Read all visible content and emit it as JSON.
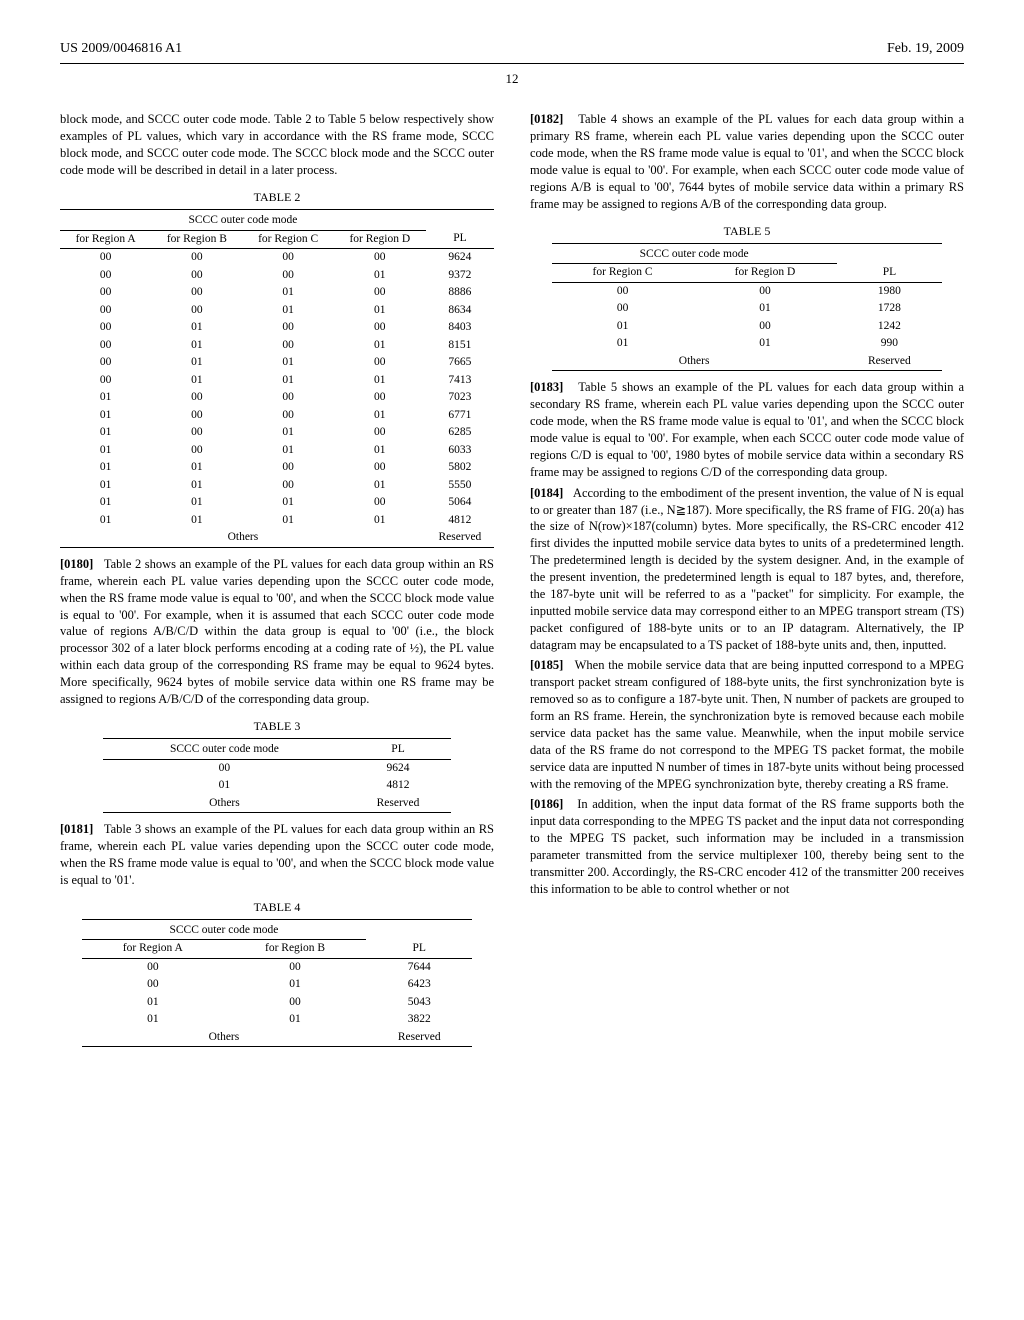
{
  "header": {
    "pub_number": "US 2009/0046816 A1",
    "pub_date": "Feb. 19, 2009",
    "page_number": "12"
  },
  "paragraphs": {
    "intro": "block mode, and SCCC outer code mode. Table 2 to Table 5 below respectively show examples of PL values, which vary in accordance with the RS frame mode, SCCC block mode, and SCCC outer code mode. The SCCC block mode and the SCCC outer code mode will be described in detail in a later process.",
    "p0180": "Table 2 shows an example of the PL values for each data group within an RS frame, wherein each PL value varies depending upon the SCCC outer code mode, when the RS frame mode value is equal to '00', and when the SCCC block mode value is equal to '00'. For example, when it is assumed that each SCCC outer code mode value of regions A/B/C/D within the data group is equal to '00' (i.e., the block processor 302 of a later block performs encoding at a coding rate of ½), the PL value within each data group of the corresponding RS frame may be equal to 9624 bytes. More specifically, 9624 bytes of mobile service data within one RS frame may be assigned to regions A/B/C/D of the corresponding data group.",
    "p0181": "Table 3 shows an example of the PL values for each data group within an RS frame, wherein each PL value varies depending upon the SCCC outer code mode, when the RS frame mode value is equal to '00', and when the SCCC block mode value is equal to '01'.",
    "p0182": "Table 4 shows an example of the PL values for each data group within a primary RS frame, wherein each PL value varies depending upon the SCCC outer code mode, when the RS frame mode value is equal to '01', and when the SCCC block mode value is equal to '00'. For example, when each SCCC outer code mode value of regions A/B is equal to '00', 7644 bytes of mobile service data within a primary RS frame may be assigned to regions A/B of the corresponding data group.",
    "p0183": "Table 5 shows an example of the PL values for each data group within a secondary RS frame, wherein each PL value varies depending upon the SCCC outer code mode, when the RS frame mode value is equal to '01', and when the SCCC block mode value is equal to '00'. For example, when each SCCC outer code mode value of regions C/D is equal to '00', 1980 bytes of mobile service data within a secondary RS frame may be assigned to regions C/D of the corresponding data group.",
    "p0184": "According to the embodiment of the present invention, the value of N is equal to or greater than 187 (i.e., N≧187). More specifically, the RS frame of FIG. 20(a) has the size of N(row)×187(column) bytes. More specifically, the RS-CRC encoder 412 first divides the inputted mobile service data bytes to units of a predetermined length. The predetermined length is decided by the system designer. And, in the example of the present invention, the predetermined length is equal to 187 bytes, and, therefore, the 187-byte unit will be referred to as a \"packet\" for simplicity. For example, the inputted mobile service data may correspond either to an MPEG transport stream (TS) packet configured of 188-byte units or to an IP datagram. Alternatively, the IP datagram may be encapsulated to a TS packet of 188-byte units and, then, inputted.",
    "p0185": "When the mobile service data that are being inputted correspond to a MPEG transport packet stream configured of 188-byte units, the first synchronization byte is removed so as to configure a 187-byte unit. Then, N number of packets are grouped to form an RS frame. Herein, the synchronization byte is removed because each mobile service data packet has the same value. Meanwhile, when the input mobile service data of the RS frame do not correspond to the MPEG TS packet format, the mobile service data are inputted N number of times in 187-byte units without being processed with the removing of the MPEG synchronization byte, thereby creating a RS frame.",
    "p0186": "In addition, when the input data format of the RS frame supports both the input data corresponding to the MPEG TS packet and the input data not corresponding to the MPEG TS packet, such information may be included in a transmission parameter transmitted from the service multiplexer 100, thereby being sent to the transmitter 200. Accordingly, the RS-CRC encoder 412 of the transmitter 200 receives this information to be able to control whether or not"
  },
  "labels": {
    "p0180": "[0180]",
    "p0181": "[0181]",
    "p0182": "[0182]",
    "p0183": "[0183]",
    "p0184": "[0184]",
    "p0185": "[0185]",
    "p0186": "[0186]",
    "table2": "TABLE 2",
    "table3": "TABLE 3",
    "table4": "TABLE 4",
    "table5": "TABLE 5",
    "sccc_header": "SCCC outer code mode",
    "regionA": "for Region A",
    "regionB": "for Region B",
    "regionC": "for Region C",
    "regionD": "for Region D",
    "pl": "PL",
    "others": "Others",
    "reserved": "Reserved"
  },
  "table2": {
    "rows": [
      [
        "00",
        "00",
        "00",
        "00",
        "9624"
      ],
      [
        "00",
        "00",
        "00",
        "01",
        "9372"
      ],
      [
        "00",
        "00",
        "01",
        "00",
        "8886"
      ],
      [
        "00",
        "00",
        "01",
        "01",
        "8634"
      ],
      [
        "00",
        "01",
        "00",
        "00",
        "8403"
      ],
      [
        "00",
        "01",
        "00",
        "01",
        "8151"
      ],
      [
        "00",
        "01",
        "01",
        "00",
        "7665"
      ],
      [
        "00",
        "01",
        "01",
        "01",
        "7413"
      ],
      [
        "01",
        "00",
        "00",
        "00",
        "7023"
      ],
      [
        "01",
        "00",
        "00",
        "01",
        "6771"
      ],
      [
        "01",
        "00",
        "01",
        "00",
        "6285"
      ],
      [
        "01",
        "00",
        "01",
        "01",
        "6033"
      ],
      [
        "01",
        "01",
        "00",
        "00",
        "5802"
      ],
      [
        "01",
        "01",
        "00",
        "01",
        "5550"
      ],
      [
        "01",
        "01",
        "01",
        "00",
        "5064"
      ],
      [
        "01",
        "01",
        "01",
        "01",
        "4812"
      ]
    ]
  },
  "table3": {
    "rows": [
      [
        "00",
        "9624"
      ],
      [
        "01",
        "4812"
      ]
    ]
  },
  "table4": {
    "rows": [
      [
        "00",
        "00",
        "7644"
      ],
      [
        "00",
        "01",
        "6423"
      ],
      [
        "01",
        "00",
        "5043"
      ],
      [
        "01",
        "01",
        "3822"
      ]
    ]
  },
  "table5": {
    "rows": [
      [
        "00",
        "00",
        "1980"
      ],
      [
        "00",
        "01",
        "1728"
      ],
      [
        "01",
        "00",
        "1242"
      ],
      [
        "01",
        "01",
        "990"
      ]
    ]
  }
}
